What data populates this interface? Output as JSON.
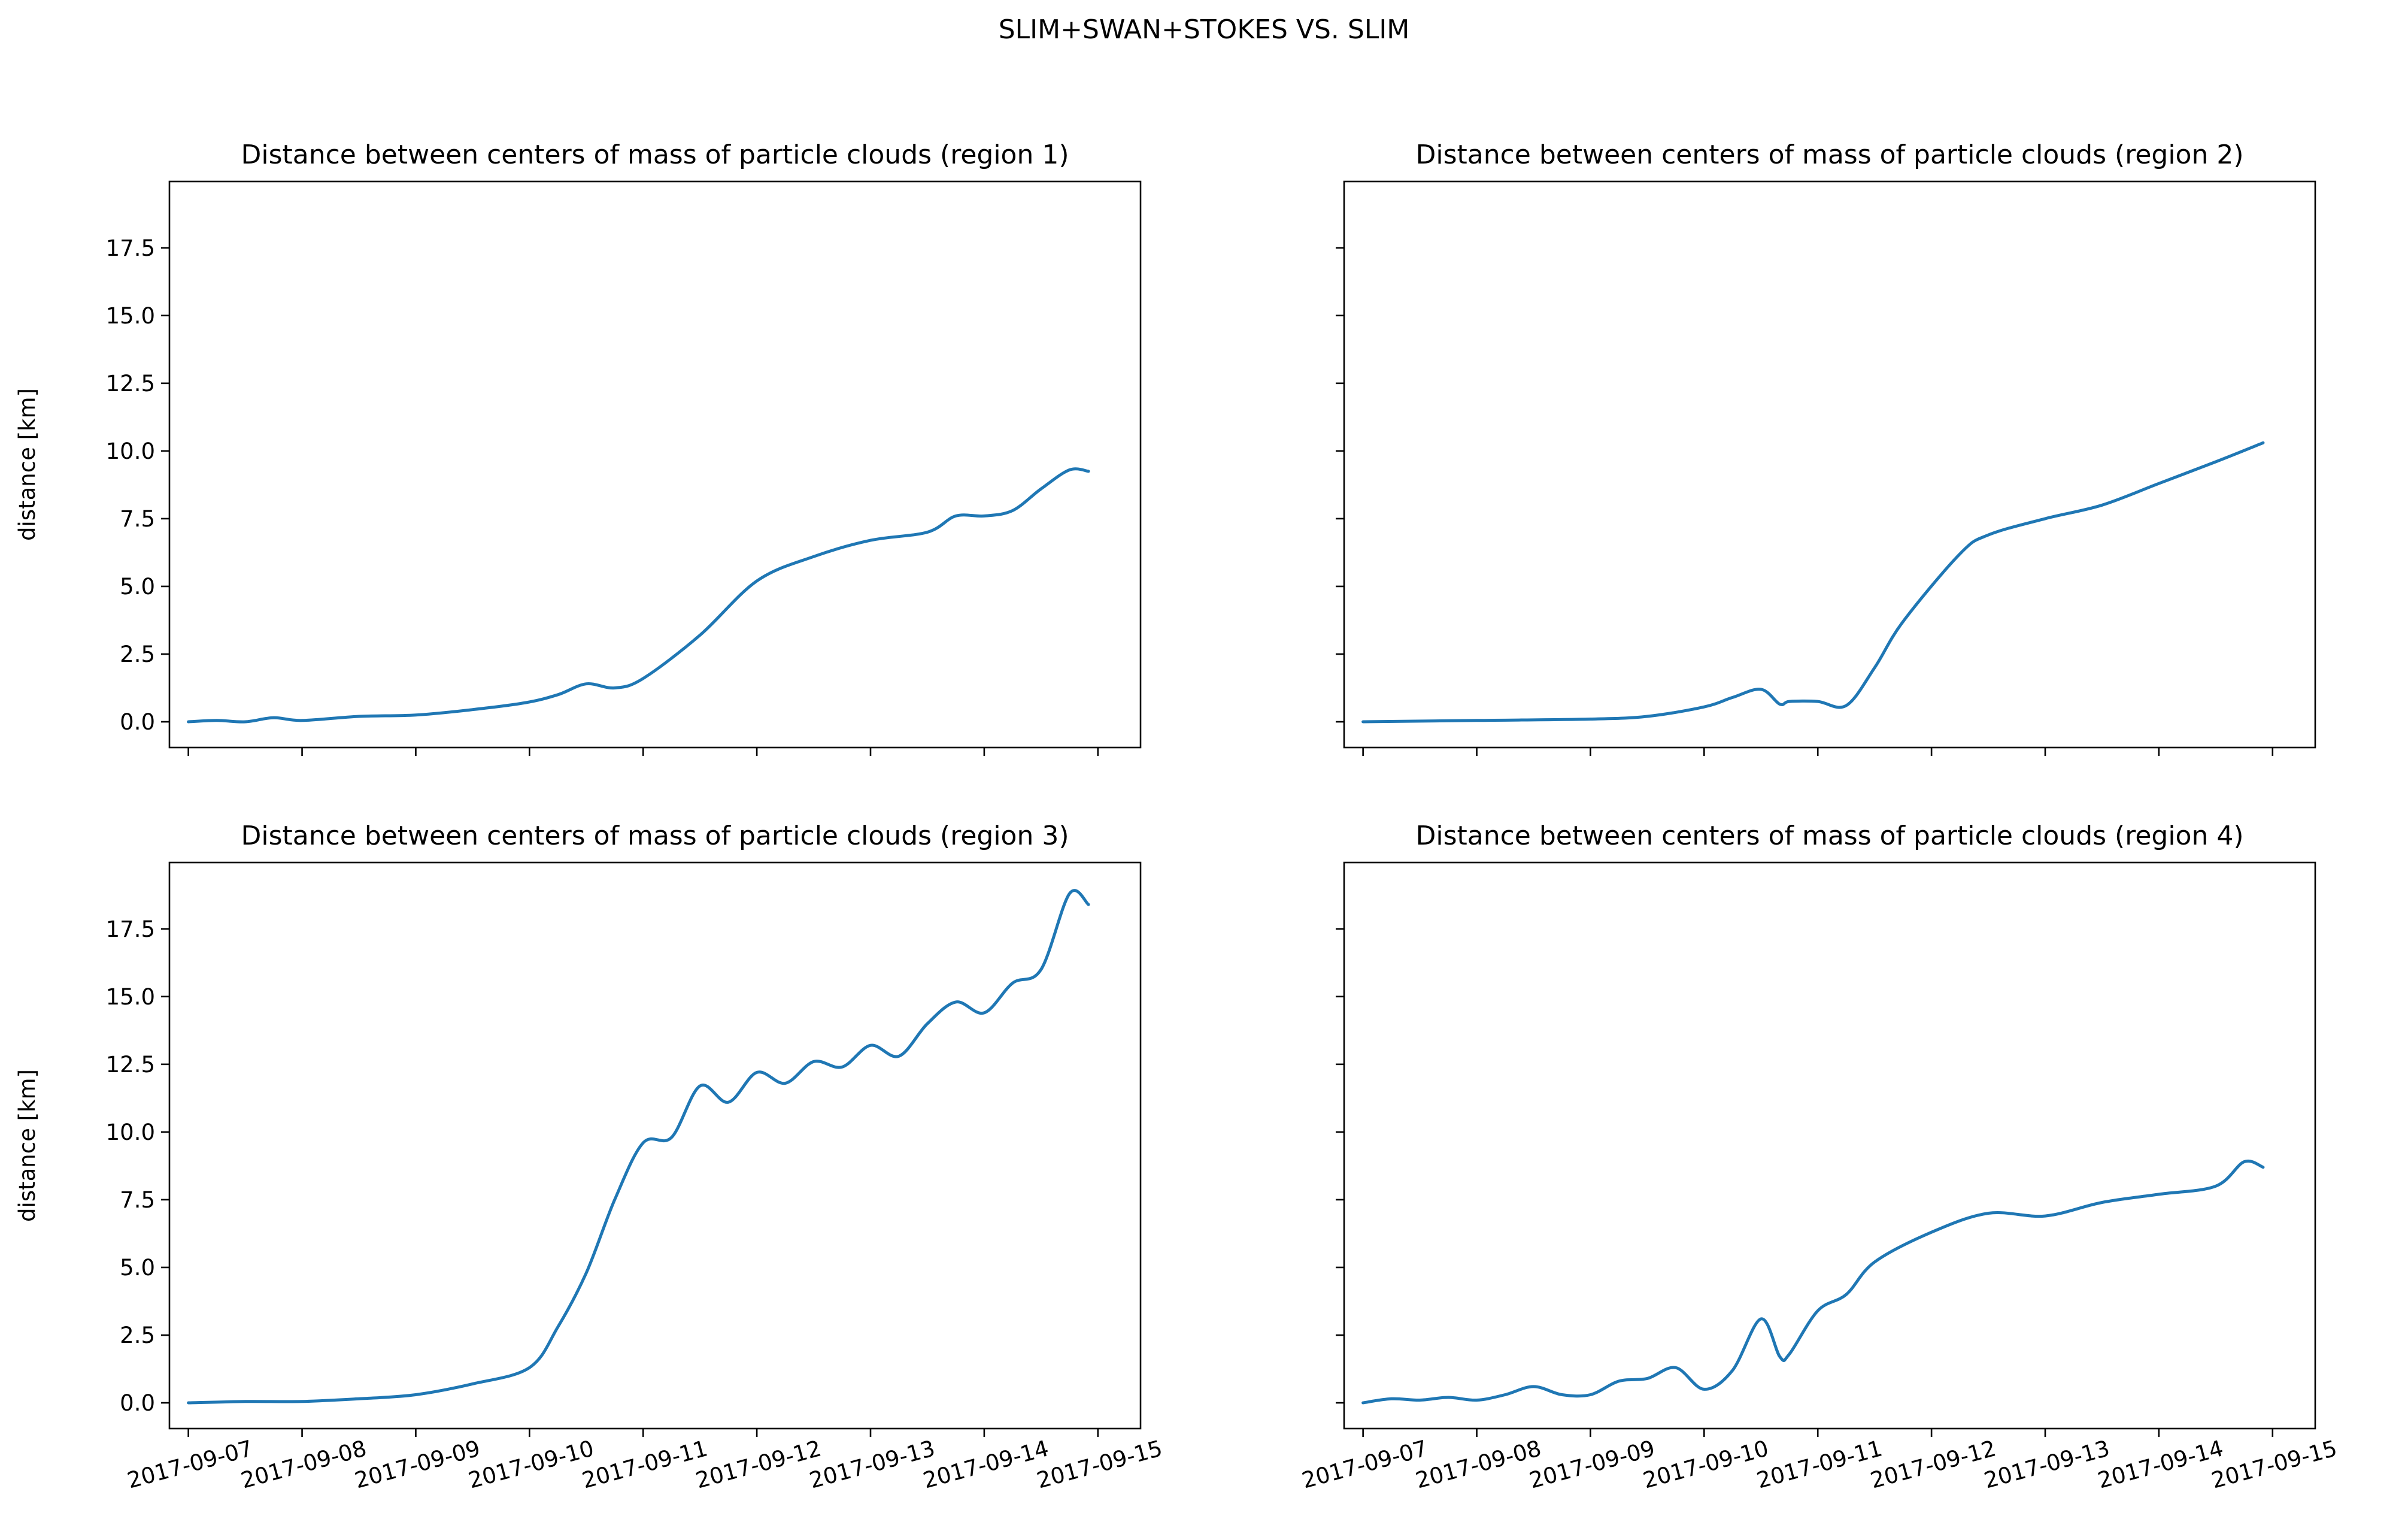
{
  "figure": {
    "suptitle": "SLIM+SWAN+STOKES VS. SLIM",
    "line_color": "#1f77b4"
  },
  "chart_data": [
    {
      "type": "line",
      "title": "Distance between centers of mass of particle clouds (region 1)",
      "xlabel": "",
      "ylabel": "distance [km]",
      "x_type": "date",
      "xlim": [
        "2017-09-06T20:00",
        "2017-09-15T09:00"
      ],
      "ylim": [
        -0.95,
        19.95
      ],
      "xticks": [
        "2017-09-07",
        "2017-09-08",
        "2017-09-09",
        "2017-09-10",
        "2017-09-11",
        "2017-09-12",
        "2017-09-13",
        "2017-09-14",
        "2017-09-15"
      ],
      "yticks": [
        "0.0",
        "2.5",
        "5.0",
        "7.5",
        "10.0",
        "12.5",
        "15.0",
        "17.5"
      ],
      "show_xticklabels": false,
      "show_yticklabels": true,
      "grid": false,
      "series": [
        {
          "x": [
            "2017-09-07T00:00",
            "2017-09-07T06:00",
            "2017-09-07T12:00",
            "2017-09-07T18:00",
            "2017-09-08T00:00",
            "2017-09-08T12:00",
            "2017-09-09T00:00",
            "2017-09-09T12:00",
            "2017-09-09T23:00",
            "2017-09-10T06:00",
            "2017-09-10T12:00",
            "2017-09-10T18:00",
            "2017-09-11T00:00",
            "2017-09-11T12:00",
            "2017-09-12T00:00",
            "2017-09-12T12:00",
            "2017-09-13T00:00",
            "2017-09-13T12:00",
            "2017-09-13T18:00",
            "2017-09-14T00:00",
            "2017-09-14T06:00",
            "2017-09-14T12:00",
            "2017-09-14T18:00",
            "2017-09-14T22:00"
          ],
          "y": [
            0.0,
            0.05,
            0.0,
            0.15,
            0.05,
            0.2,
            0.25,
            0.45,
            0.7,
            1.0,
            1.4,
            1.25,
            1.6,
            3.2,
            5.2,
            6.1,
            6.7,
            7.0,
            7.6,
            7.6,
            7.8,
            8.6,
            9.3,
            9.25
          ]
        }
      ]
    },
    {
      "type": "line",
      "title": "Distance between centers of mass of particle clouds (region 2)",
      "xlabel": "",
      "ylabel": "",
      "x_type": "date",
      "xlim": [
        "2017-09-06T20:00",
        "2017-09-15T09:00"
      ],
      "ylim": [
        -0.95,
        19.95
      ],
      "xticks": [
        "2017-09-07",
        "2017-09-08",
        "2017-09-09",
        "2017-09-10",
        "2017-09-11",
        "2017-09-12",
        "2017-09-13",
        "2017-09-14",
        "2017-09-15"
      ],
      "yticks": [
        "0.0",
        "2.5",
        "5.0",
        "7.5",
        "10.0",
        "12.5",
        "15.0",
        "17.5"
      ],
      "show_xticklabels": false,
      "show_yticklabels": false,
      "grid": false,
      "series": [
        {
          "x": [
            "2017-09-07T00:00",
            "2017-09-08T00:00",
            "2017-09-09T00:00",
            "2017-09-09T12:00",
            "2017-09-10T00:00",
            "2017-09-10T06:00",
            "2017-09-10T12:00",
            "2017-09-10T16:00",
            "2017-09-10T18:00",
            "2017-09-11T00:00",
            "2017-09-11T06:00",
            "2017-09-11T12:00",
            "2017-09-11T18:00",
            "2017-09-12T06:00",
            "2017-09-12T12:00",
            "2017-09-13T00:00",
            "2017-09-13T12:00",
            "2017-09-14T00:00",
            "2017-09-14T12:00",
            "2017-09-14T22:00"
          ],
          "y": [
            0.0,
            0.05,
            0.1,
            0.2,
            0.55,
            0.9,
            1.2,
            0.65,
            0.75,
            0.75,
            0.6,
            2.0,
            3.7,
            6.2,
            6.9,
            7.5,
            8.0,
            8.8,
            9.6,
            10.3
          ]
        }
      ]
    },
    {
      "type": "line",
      "title": "Distance between centers of mass of particle clouds (region 3)",
      "xlabel": "",
      "ylabel": "distance [km]",
      "x_type": "date",
      "xlim": [
        "2017-09-06T20:00",
        "2017-09-15T09:00"
      ],
      "ylim": [
        -0.95,
        19.95
      ],
      "xticks": [
        "2017-09-07",
        "2017-09-08",
        "2017-09-09",
        "2017-09-10",
        "2017-09-11",
        "2017-09-12",
        "2017-09-13",
        "2017-09-14",
        "2017-09-15"
      ],
      "yticks": [
        "0.0",
        "2.5",
        "5.0",
        "7.5",
        "10.0",
        "12.5",
        "15.0",
        "17.5"
      ],
      "show_xticklabels": true,
      "show_yticklabels": true,
      "grid": false,
      "series": [
        {
          "x": [
            "2017-09-07T00:00",
            "2017-09-07T12:00",
            "2017-09-08T00:00",
            "2017-09-08T12:00",
            "2017-09-09T00:00",
            "2017-09-09T12:00",
            "2017-09-10T00:00",
            "2017-09-10T06:00",
            "2017-09-10T12:00",
            "2017-09-10T18:00",
            "2017-09-11T00:00",
            "2017-09-11T06:00",
            "2017-09-11T12:00",
            "2017-09-11T18:00",
            "2017-09-12T00:00",
            "2017-09-12T06:00",
            "2017-09-12T12:00",
            "2017-09-12T18:00",
            "2017-09-13T00:00",
            "2017-09-13T06:00",
            "2017-09-13T12:00",
            "2017-09-13T18:00",
            "2017-09-14T00:00",
            "2017-09-14T06:00",
            "2017-09-14T12:00",
            "2017-09-14T18:00",
            "2017-09-14T22:00"
          ],
          "y": [
            0.0,
            0.05,
            0.05,
            0.15,
            0.3,
            0.7,
            1.3,
            2.8,
            4.8,
            7.5,
            9.6,
            9.8,
            11.7,
            11.1,
            12.2,
            11.8,
            12.6,
            12.4,
            13.2,
            12.8,
            14.0,
            14.8,
            14.4,
            15.5,
            16.0,
            18.8,
            18.4
          ]
        }
      ]
    },
    {
      "type": "line",
      "title": "Distance between centers of mass of particle clouds (region 4)",
      "xlabel": "",
      "ylabel": "",
      "x_type": "date",
      "xlim": [
        "2017-09-06T20:00",
        "2017-09-15T09:00"
      ],
      "ylim": [
        -0.95,
        19.95
      ],
      "xticks": [
        "2017-09-07",
        "2017-09-08",
        "2017-09-09",
        "2017-09-10",
        "2017-09-11",
        "2017-09-12",
        "2017-09-13",
        "2017-09-14",
        "2017-09-15"
      ],
      "yticks": [
        "0.0",
        "2.5",
        "5.0",
        "7.5",
        "10.0",
        "12.5",
        "15.0",
        "17.5"
      ],
      "show_xticklabels": true,
      "show_yticklabels": false,
      "grid": false,
      "series": [
        {
          "x": [
            "2017-09-07T00:00",
            "2017-09-07T06:00",
            "2017-09-07T12:00",
            "2017-09-07T18:00",
            "2017-09-08T00:00",
            "2017-09-08T06:00",
            "2017-09-08T12:00",
            "2017-09-08T18:00",
            "2017-09-09T00:00",
            "2017-09-09T06:00",
            "2017-09-09T12:00",
            "2017-09-09T18:00",
            "2017-09-10T00:00",
            "2017-09-10T06:00",
            "2017-09-10T12:00",
            "2017-09-10T16:00",
            "2017-09-10T18:00",
            "2017-09-11T00:00",
            "2017-09-11T06:00",
            "2017-09-11T12:00",
            "2017-09-12T00:00",
            "2017-09-12T12:00",
            "2017-09-13T00:00",
            "2017-09-13T12:00",
            "2017-09-14T00:00",
            "2017-09-14T12:00",
            "2017-09-14T18:00",
            "2017-09-14T22:00"
          ],
          "y": [
            0.0,
            0.15,
            0.1,
            0.2,
            0.1,
            0.3,
            0.6,
            0.3,
            0.3,
            0.8,
            0.9,
            1.3,
            0.5,
            1.2,
            3.1,
            1.7,
            1.8,
            3.4,
            4.0,
            5.2,
            6.3,
            7.0,
            6.9,
            7.4,
            7.7,
            8.0,
            8.9,
            8.7
          ]
        }
      ]
    }
  ]
}
